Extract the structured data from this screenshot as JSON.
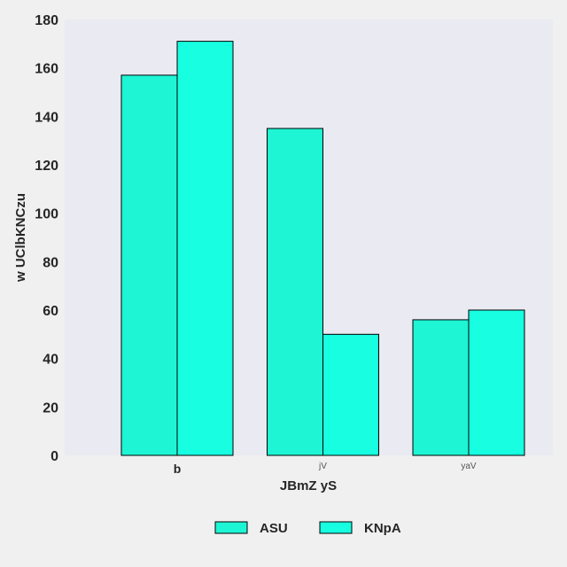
{
  "chart_data": {
    "type": "bar",
    "title": "",
    "xlabel": "JBmZ yS",
    "ylabel": "w UClbKNCzu",
    "categories": [
      "b",
      "jV",
      "yaV"
    ],
    "series": [
      {
        "name": "ASU",
        "values": [
          157,
          135,
          56
        ],
        "color": "#1ef5d4"
      },
      {
        "name": "KNpA",
        "values": [
          171,
          50,
          60
        ],
        "color": "#17ffe0"
      }
    ],
    "ylim": [
      0,
      180
    ],
    "yticks": [
      "0",
      "20",
      "40",
      "60",
      "80",
      "100",
      "120",
      "140",
      "160",
      "180"
    ],
    "grid": false,
    "legend": "bottom-center",
    "plot_background": "#eaeaf2"
  }
}
